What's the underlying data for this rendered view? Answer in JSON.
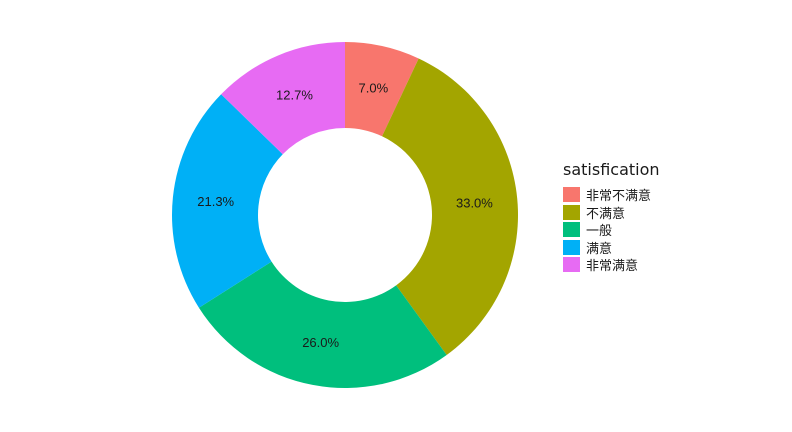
{
  "chart_data": {
    "type": "pie",
    "variant": "donut",
    "legend_title": "satisfication",
    "legend_position": "right",
    "grid": false,
    "slices": [
      {
        "label": "非常不满意",
        "value": 7.0,
        "text": "7.0%",
        "color": "#F8766D"
      },
      {
        "label": "不满意",
        "value": 33.0,
        "text": "33.0%",
        "color": "#A3A500"
      },
      {
        "label": "一般",
        "value": 26.0,
        "text": "26.0%",
        "color": "#00BF7D"
      },
      {
        "label": "满意",
        "value": 21.3,
        "text": "21.3%",
        "color": "#00B0F6"
      },
      {
        "label": "非常满意",
        "value": 12.7,
        "text": "12.7%",
        "color": "#E76BF3"
      }
    ]
  }
}
